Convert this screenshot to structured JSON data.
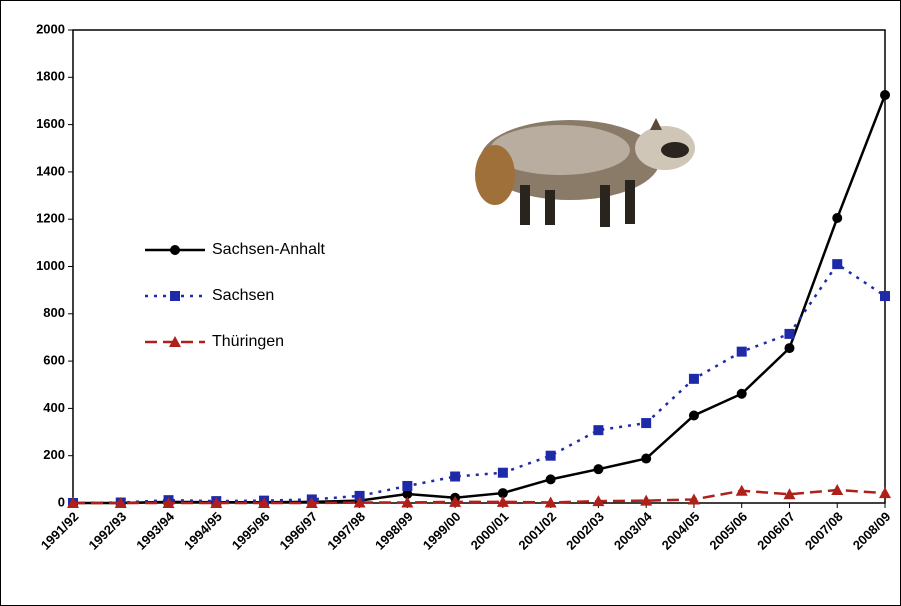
{
  "chart_data": {
    "type": "line",
    "categories": [
      "1991/92",
      "1992/93",
      "1993/94",
      "1994/95",
      "1995/96",
      "1996/97",
      "1997/98",
      "1998/99",
      "1999/00",
      "2000/01",
      "2001/02",
      "2002/03",
      "2003/04",
      "2004/05",
      "2005/06",
      "2006/07",
      "2007/08",
      "2008/09"
    ],
    "series": [
      {
        "name": "Sachsen-Anhalt",
        "color": "#000000",
        "marker": "circle",
        "line_style": "solid",
        "values": [
          0,
          0,
          5,
          3,
          3,
          5,
          10,
          38,
          22,
          42,
          100,
          143,
          188,
          370,
          462,
          655,
          1205,
          1725
        ]
      },
      {
        "name": "Sachsen",
        "color": "#1f2aa8",
        "marker": "square",
        "line_style": "dotted",
        "values": [
          0,
          2,
          12,
          8,
          10,
          15,
          30,
          72,
          112,
          128,
          200,
          308,
          338,
          525,
          640,
          715,
          1010,
          875
        ]
      },
      {
        "name": "Thüringen",
        "color": "#b0201a",
        "marker": "triangle",
        "line_style": "dashed",
        "values": [
          0,
          0,
          0,
          0,
          0,
          0,
          2,
          2,
          5,
          5,
          2,
          8,
          10,
          15,
          52,
          37,
          55,
          42
        ]
      }
    ],
    "ylim": [
      0,
      2000
    ],
    "yticks": [
      0,
      200,
      400,
      600,
      800,
      1000,
      1200,
      1400,
      1600,
      1800,
      2000
    ]
  }
}
